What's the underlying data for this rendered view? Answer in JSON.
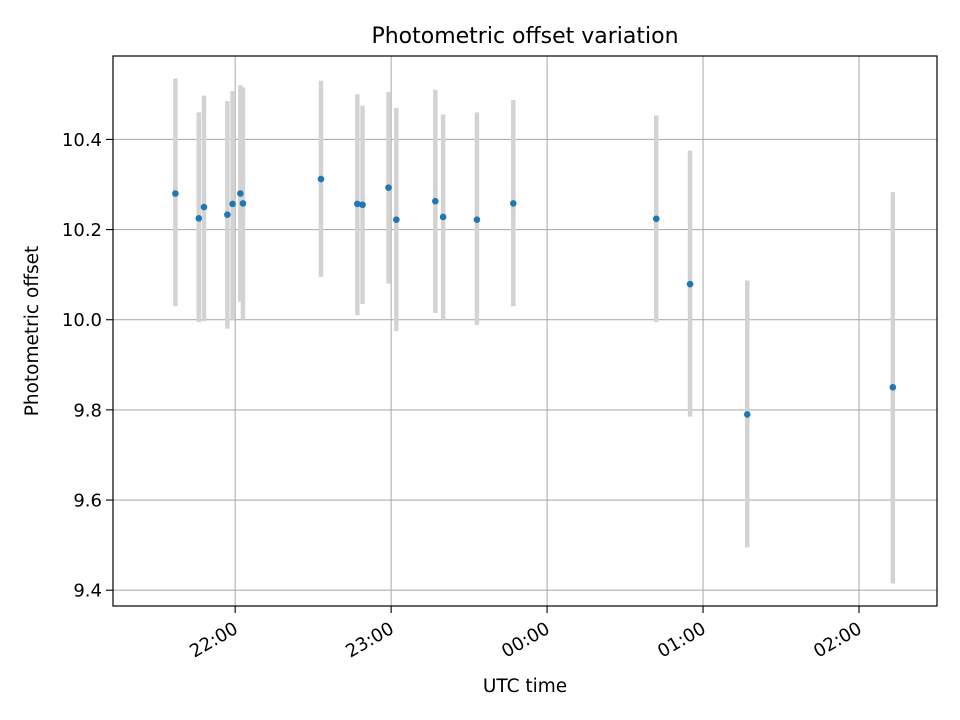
{
  "chart_data": {
    "type": "scatter",
    "title": "Photometric offset variation",
    "xlabel": "UTC time",
    "ylabel": "Photometric offset",
    "grid": true,
    "xlim": [
      "21:13",
      "02:30"
    ],
    "ylim": [
      9.365,
      10.585
    ],
    "x_ticks": [
      "22:00",
      "23:00",
      "00:00",
      "01:00",
      "02:00"
    ],
    "y_ticks": [
      9.4,
      9.6,
      9.8,
      10.0,
      10.2,
      10.4
    ],
    "y_tick_labels": [
      "9.4",
      "9.6",
      "9.8",
      "10.0",
      "10.2",
      "10.4"
    ],
    "colors": {
      "point": "#1f77b4",
      "errorbar": "#d3d3d3",
      "grid": "#b0b0b0"
    },
    "points": [
      {
        "time": "21:37",
        "y": 10.28,
        "err_low": 10.03,
        "err_high": 10.535
      },
      {
        "time": "21:46",
        "y": 10.225,
        "err_low": 9.995,
        "err_high": 10.46
      },
      {
        "time": "21:48",
        "y": 10.25,
        "err_low": 9.997,
        "err_high": 10.497
      },
      {
        "time": "21:57",
        "y": 10.233,
        "err_low": 9.98,
        "err_high": 10.485
      },
      {
        "time": "21:59",
        "y": 10.257,
        "err_low": 10.0,
        "err_high": 10.507
      },
      {
        "time": "22:02",
        "y": 10.28,
        "err_low": 10.04,
        "err_high": 10.52
      },
      {
        "time": "22:03",
        "y": 10.258,
        "err_low": 10.0,
        "err_high": 10.515
      },
      {
        "time": "22:33",
        "y": 10.312,
        "err_low": 10.095,
        "err_high": 10.53
      },
      {
        "time": "22:47",
        "y": 10.257,
        "err_low": 10.01,
        "err_high": 10.5
      },
      {
        "time": "22:49",
        "y": 10.255,
        "err_low": 10.035,
        "err_high": 10.475
      },
      {
        "time": "22:59",
        "y": 10.293,
        "err_low": 10.08,
        "err_high": 10.505
      },
      {
        "time": "23:02",
        "y": 10.222,
        "err_low": 9.975,
        "err_high": 10.47
      },
      {
        "time": "23:17",
        "y": 10.263,
        "err_low": 10.015,
        "err_high": 10.51
      },
      {
        "time": "23:20",
        "y": 10.228,
        "err_low": 10.0,
        "err_high": 10.455
      },
      {
        "time": "23:33",
        "y": 10.222,
        "err_low": 9.988,
        "err_high": 10.46
      },
      {
        "time": "23:47",
        "y": 10.258,
        "err_low": 10.03,
        "err_high": 10.487
      },
      {
        "time": "00:42",
        "y": 10.224,
        "err_low": 9.995,
        "err_high": 10.453
      },
      {
        "time": "00:55",
        "y": 10.079,
        "err_low": 9.785,
        "err_high": 10.375
      },
      {
        "time": "01:17",
        "y": 9.79,
        "err_low": 9.495,
        "err_high": 10.087
      },
      {
        "time": "02:13",
        "y": 9.85,
        "err_low": 9.415,
        "err_high": 10.283
      }
    ]
  }
}
